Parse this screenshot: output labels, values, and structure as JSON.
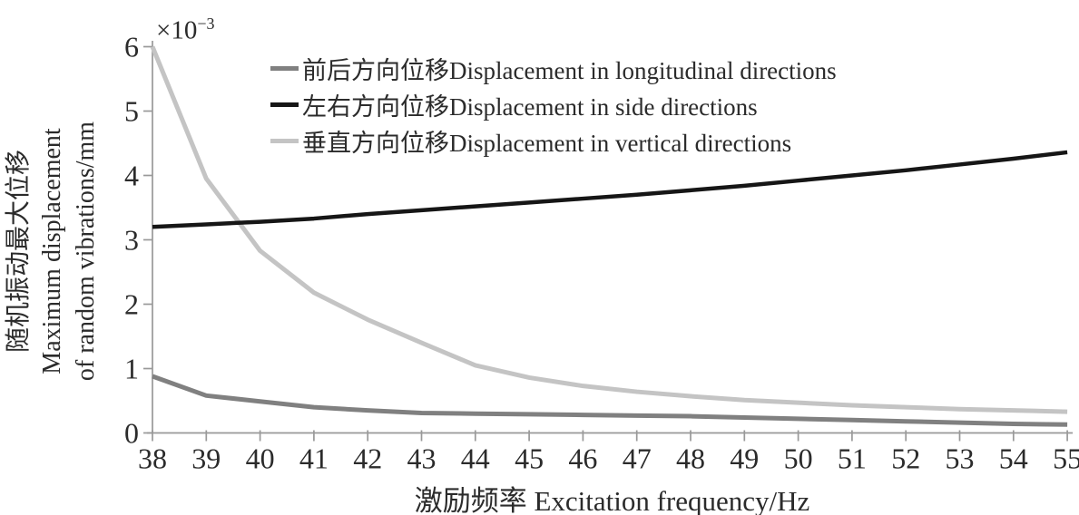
{
  "figure": {
    "x_axis_label": "激励频率 Excitation frequency/Hz",
    "y_axis_label_lines": [
      "随机振动最大位移",
      "Maximum displacement",
      "of random vibrations/mm"
    ],
    "y_offset": {
      "base": "×10",
      "exp": "−3"
    }
  },
  "chart_data": {
    "type": "line",
    "title": "",
    "xlabel": "激励频率 Excitation frequency/Hz",
    "ylabel": "随机振动最大位移 Maximum displacement of random vibrations/mm",
    "y_scale_note": "×10⁻³",
    "xlim": [
      38,
      55
    ],
    "ylim": [
      0,
      6
    ],
    "grid": false,
    "legend_position": "upper-center-inside",
    "x_ticks": [
      38,
      39,
      40,
      41,
      42,
      43,
      44,
      45,
      46,
      47,
      48,
      49,
      50,
      51,
      52,
      53,
      54,
      55
    ],
    "y_ticks": [
      0,
      1,
      2,
      3,
      4,
      5,
      6
    ],
    "x": [
      38,
      39,
      40,
      41,
      42,
      43,
      44,
      45,
      46,
      47,
      48,
      49,
      50,
      51,
      52,
      53,
      54,
      55
    ],
    "series": [
      {
        "name": "前后方向位移Displacement in longitudinal directions",
        "color": "#808080",
        "width": 5,
        "values": [
          0.88,
          0.58,
          0.49,
          0.4,
          0.35,
          0.31,
          0.3,
          0.29,
          0.28,
          0.27,
          0.26,
          0.24,
          0.22,
          0.2,
          0.18,
          0.16,
          0.14,
          0.13
        ]
      },
      {
        "name": "左右方向位移Displacement in side directions",
        "color": "#161616",
        "width": 4.5,
        "values": [
          3.2,
          3.24,
          3.28,
          3.33,
          3.4,
          3.46,
          3.52,
          3.58,
          3.64,
          3.7,
          3.77,
          3.84,
          3.92,
          4.0,
          4.08,
          4.17,
          4.26,
          4.36
        ]
      },
      {
        "name": "垂直方向位移Displacement in vertical directions",
        "color": "#c4c4c4",
        "width": 5,
        "values": [
          6.0,
          3.95,
          2.83,
          2.18,
          1.76,
          1.4,
          1.05,
          0.86,
          0.73,
          0.64,
          0.57,
          0.51,
          0.47,
          0.43,
          0.4,
          0.37,
          0.35,
          0.33
        ]
      }
    ]
  }
}
